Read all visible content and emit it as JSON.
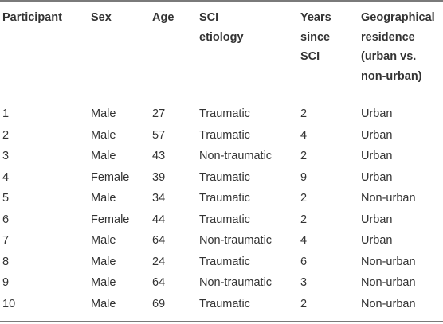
{
  "table": {
    "headers": [
      [
        "Participant"
      ],
      [
        "Sex"
      ],
      [
        "Age"
      ],
      [
        "SCI",
        "etiology"
      ],
      [
        "Years",
        "since",
        "SCI"
      ],
      [
        "Geographical",
        "residence",
        "(urban vs.",
        "non-urban)"
      ]
    ],
    "rows": [
      [
        "1",
        "Male",
        "27",
        "Traumatic",
        "2",
        "Urban"
      ],
      [
        "2",
        "Male",
        "57",
        "Traumatic",
        "4",
        "Urban"
      ],
      [
        "3",
        "Male",
        "43",
        "Non-traumatic",
        "2",
        "Urban"
      ],
      [
        "4",
        "Female",
        "39",
        "Traumatic",
        "9",
        "Urban"
      ],
      [
        "5",
        "Male",
        "34",
        "Traumatic",
        "2",
        "Non-urban"
      ],
      [
        "6",
        "Female",
        "44",
        "Traumatic",
        "2",
        "Urban"
      ],
      [
        "7",
        "Male",
        "64",
        "Non-traumatic",
        "4",
        "Urban"
      ],
      [
        "8",
        "Male",
        "24",
        "Traumatic",
        "6",
        "Non-urban"
      ],
      [
        "9",
        "Male",
        "64",
        "Non-traumatic",
        "3",
        "Non-urban"
      ],
      [
        "10",
        "Male",
        "69",
        "Traumatic",
        "2",
        "Non-urban"
      ]
    ]
  }
}
